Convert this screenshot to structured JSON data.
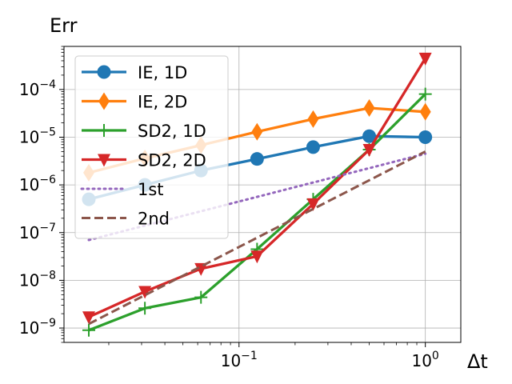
{
  "chart_data": {
    "type": "line",
    "title": "",
    "xlabel": "Δt",
    "ylabel": "Err",
    "xscale": "log",
    "yscale": "log",
    "xlim": [
      0.0115,
      1.55
    ],
    "ylim": [
      5e-10,
      0.0008
    ],
    "grid": true,
    "legend_position": "top-left",
    "x_ticks": [
      {
        "value": 0.1,
        "base": "10",
        "exp": "−1"
      },
      {
        "value": 1,
        "base": "10",
        "exp": "0"
      }
    ],
    "y_ticks": [
      {
        "value": 1e-09,
        "base": "10",
        "exp": "−9"
      },
      {
        "value": 1e-08,
        "base": "10",
        "exp": "−8"
      },
      {
        "value": 1e-07,
        "base": "10",
        "exp": "−7"
      },
      {
        "value": 1e-06,
        "base": "10",
        "exp": "−6"
      },
      {
        "value": 1e-05,
        "base": "10",
        "exp": "−5"
      },
      {
        "value": 0.0001,
        "base": "10",
        "exp": "−4"
      }
    ],
    "series": [
      {
        "name": "IE, 1D",
        "color": "#1f77b4",
        "style": "solid",
        "marker": "circle",
        "x": [
          0.015625,
          0.03125,
          0.0625,
          0.125,
          0.25,
          0.5,
          1.0
        ],
        "y": [
          5e-07,
          1e-06,
          2e-06,
          3.5e-06,
          6.2e-06,
          1.05e-05,
          1e-05
        ]
      },
      {
        "name": "IE, 2D",
        "color": "#ff7f0e",
        "style": "solid",
        "marker": "diamond",
        "x": [
          0.015625,
          0.03125,
          0.0625,
          0.125,
          0.25,
          0.5,
          1.0
        ],
        "y": [
          1.8e-06,
          3.6e-06,
          6.8e-06,
          1.3e-05,
          2.4e-05,
          4.1e-05,
          3.4e-05
        ]
      },
      {
        "name": "SD2, 1D",
        "color": "#2ca02c",
        "style": "solid",
        "marker": "plus",
        "x": [
          0.015625,
          0.03125,
          0.0625,
          0.125,
          0.25,
          0.5,
          1.0
        ],
        "y": [
          9e-10,
          2.6e-09,
          4.4e-09,
          4.5e-08,
          5e-07,
          5.5e-06,
          8e-05
        ]
      },
      {
        "name": "SD2, 2D",
        "color": "#d62728",
        "style": "solid",
        "marker": "triangle-down",
        "x": [
          0.015625,
          0.03125,
          0.0625,
          0.125,
          0.25,
          0.5,
          1.0
        ],
        "y": [
          1.7e-09,
          5.8e-09,
          1.75e-08,
          3.2e-08,
          4e-07,
          5.5e-06,
          0.00045
        ]
      },
      {
        "name": "1st",
        "color": "#9467bd",
        "style": "dotted",
        "marker": "none",
        "x": [
          0.015625,
          1.0
        ],
        "y": [
          7e-08,
          4.5e-06
        ]
      },
      {
        "name": "2nd",
        "color": "#8c564b",
        "style": "dashed",
        "marker": "none",
        "x": [
          0.015625,
          1.0
        ],
        "y": [
          1.22e-09,
          5e-06
        ]
      }
    ]
  }
}
